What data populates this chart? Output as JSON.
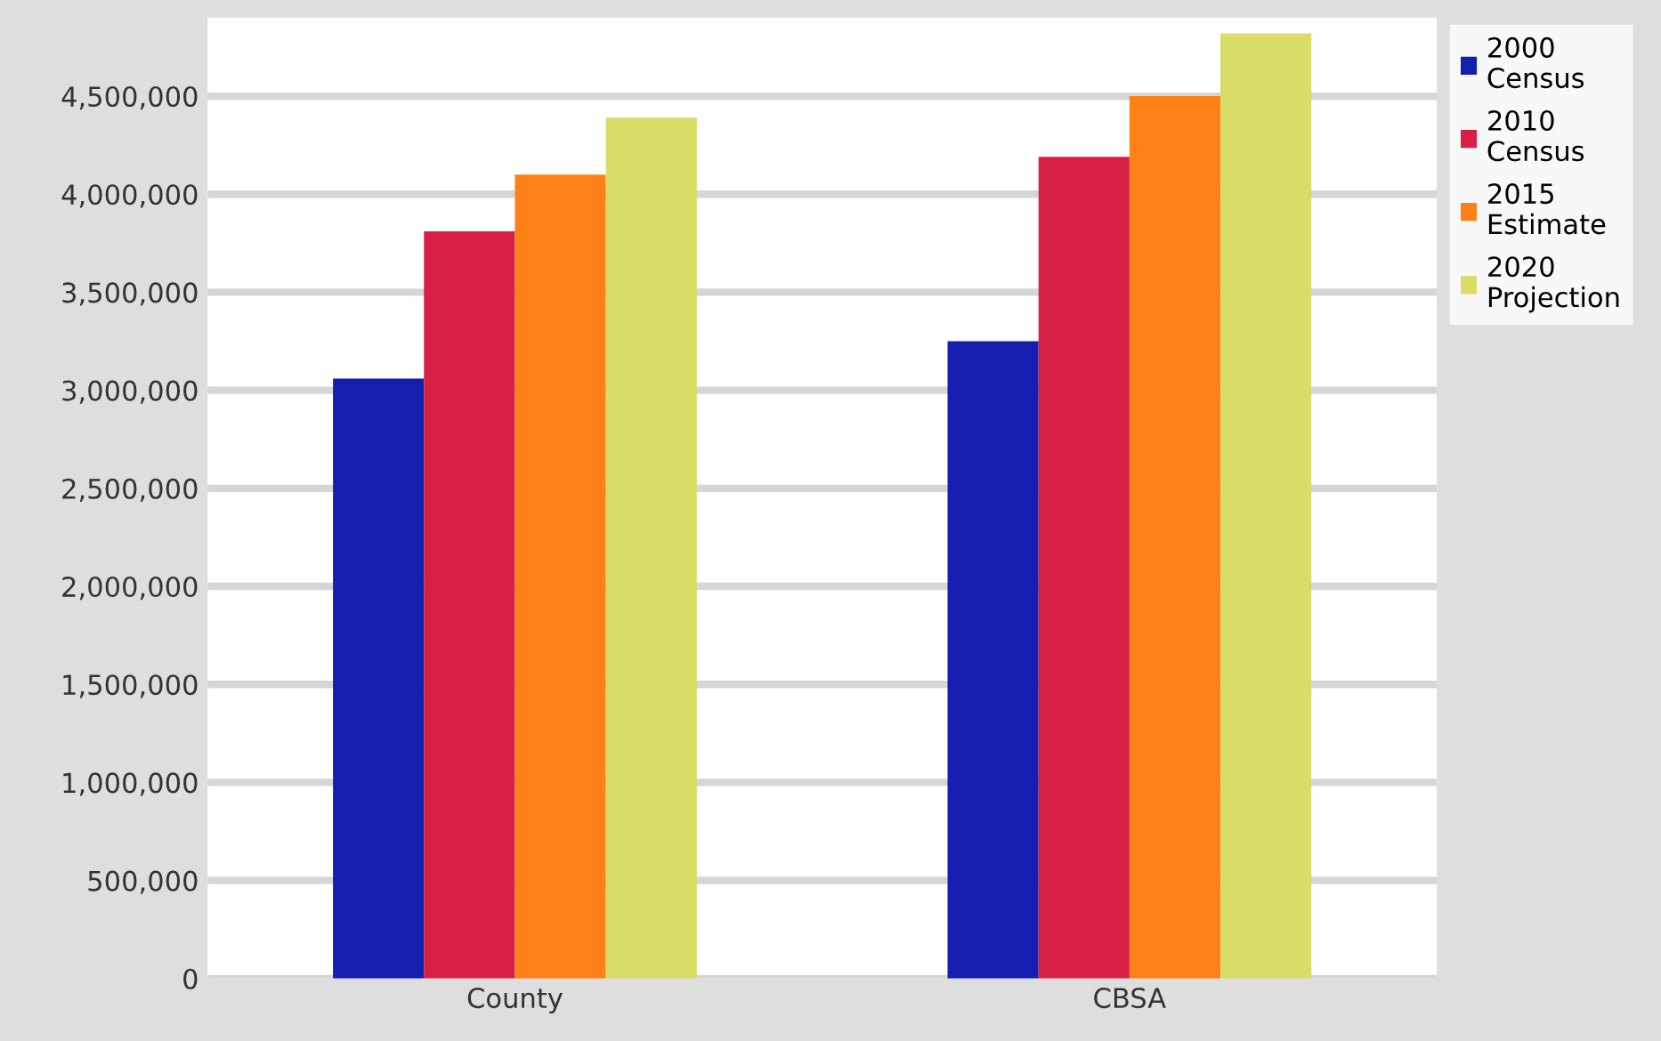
{
  "chart_data": {
    "type": "bar",
    "categories": [
      "County",
      "CBSA"
    ],
    "series": [
      {
        "name": "2000 Census",
        "color": "#141eaf",
        "values": [
          3060000,
          3250000
        ]
      },
      {
        "name": "2010 Census",
        "color": "#d82046",
        "values": [
          3810000,
          4190000
        ]
      },
      {
        "name": "2015 Estimate",
        "color": "#fe8016",
        "values": [
          4100000,
          4500000
        ]
      },
      {
        "name": "2020 Projection",
        "color": "#d9dc66",
        "values": [
          4390000,
          4820000
        ]
      }
    ],
    "ylim": [
      0,
      4900000
    ],
    "yticks": [
      {
        "value": 0,
        "label": "0"
      },
      {
        "value": 500000,
        "label": "500,000"
      },
      {
        "value": 1000000,
        "label": "1,000,000"
      },
      {
        "value": 1500000,
        "label": "1,500,000"
      },
      {
        "value": 2000000,
        "label": "2,000,000"
      },
      {
        "value": 2500000,
        "label": "2,500,000"
      },
      {
        "value": 3000000,
        "label": "3,000,000"
      },
      {
        "value": 3500000,
        "label": "3,500,000"
      },
      {
        "value": 4000000,
        "label": "4,000,000"
      },
      {
        "value": 4500000,
        "label": "4,500,000"
      }
    ],
    "grid": "y",
    "legend": "right"
  }
}
